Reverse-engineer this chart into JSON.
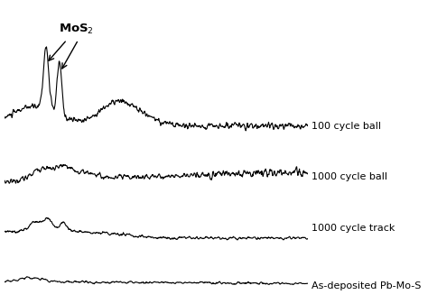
{
  "background_color": "#ffffff",
  "line_color": "#000000",
  "label_100_cycle_ball": "100 cycle ball",
  "label_1000_cycle_ball": "1000 cycle ball",
  "label_1000_cycle_track": "1000 cycle track",
  "label_as_deposited": "As-deposited Pb-Mo-S",
  "mos2_label": "MoS$_2$",
  "offsets": [
    2.8,
    1.8,
    0.9,
    0.0
  ],
  "noise_seed": 42,
  "figsize": [
    4.74,
    3.37
  ],
  "dpi": 100
}
